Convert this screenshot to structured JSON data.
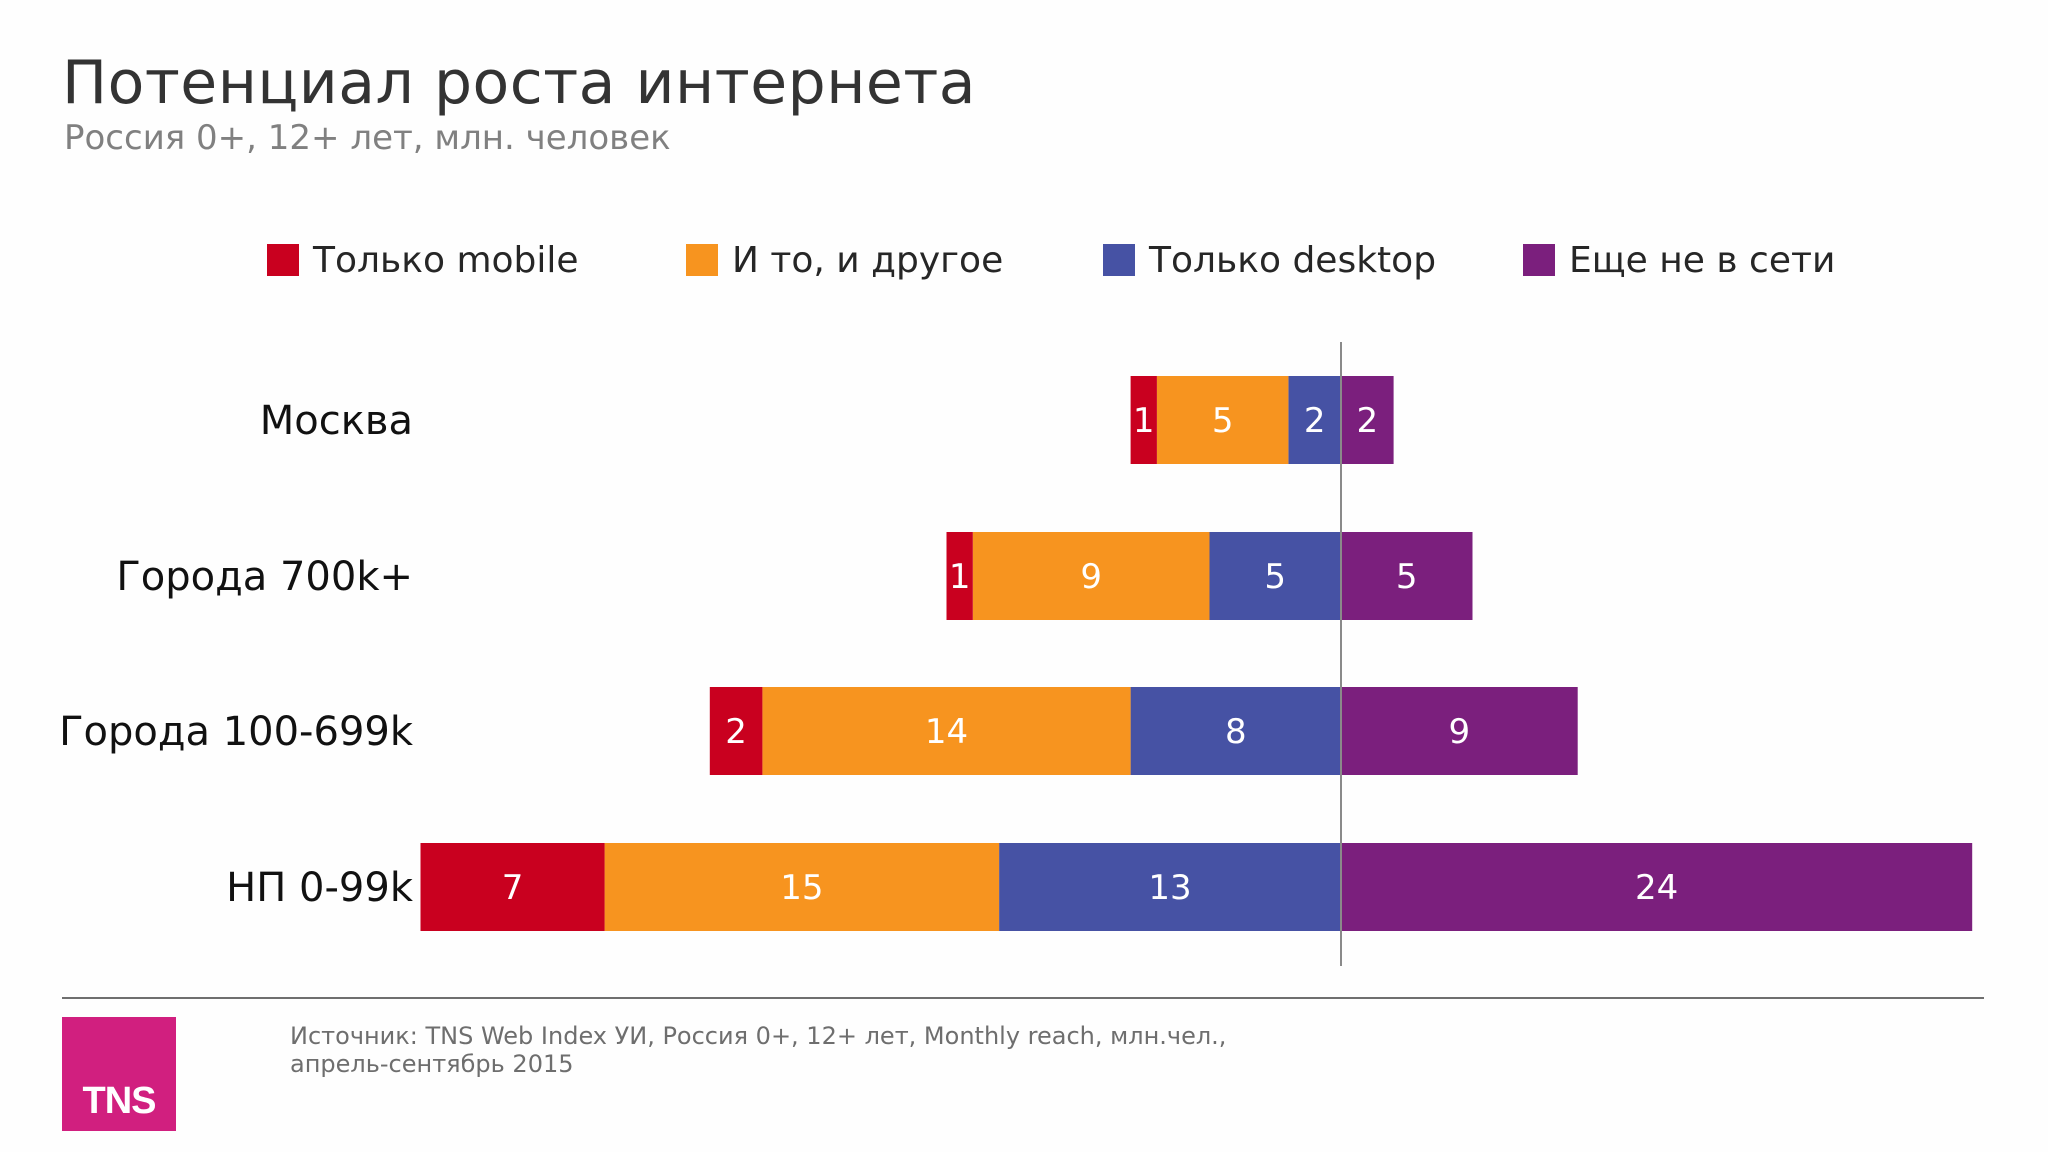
{
  "header": {
    "title": "Потенциал роста интернета",
    "subtitle": "Россия 0+, 12+ лет, млн. человек"
  },
  "legend": [
    {
      "label": "Только mobile",
      "color": "#c9001f"
    },
    {
      "label": "И то, и другое",
      "color": "#f7941f"
    },
    {
      "label": "Только desktop",
      "color": "#4652a4"
    },
    {
      "label": "Еще не в сети",
      "color": "#7b1f7d"
    }
  ],
  "chart_data": {
    "type": "bar",
    "orientation": "horizontal",
    "stacked": "diverging",
    "categories": [
      "Москва",
      "Города 700k+",
      "Города 100-699k",
      "НП 0-99k"
    ],
    "series": [
      {
        "name": "Только mobile",
        "side": "left",
        "color": "#c9001f",
        "values": [
          1,
          1,
          2,
          7
        ]
      },
      {
        "name": "И то, и другое",
        "side": "left",
        "color": "#f7941f",
        "values": [
          5,
          9,
          14,
          15
        ]
      },
      {
        "name": "Только desktop",
        "side": "left",
        "color": "#4652a4",
        "values": [
          2,
          5,
          8,
          13
        ]
      },
      {
        "name": "Еще не в сети",
        "side": "right",
        "color": "#7b1f7d",
        "values": [
          2,
          5,
          9,
          24
        ]
      }
    ],
    "title": "Потенциал роста интернета",
    "subtitle": "Россия 0+, 12+ лет, млн. человек",
    "xlabel": "",
    "ylabel": "",
    "grid": false,
    "legend_position": "top"
  },
  "footer": {
    "source_line1": "Источник: TNS Web Index УИ, Россия 0+, 12+ лет, Monthly reach, млн.чел.,",
    "source_line2": "апрель-сентябрь 2015",
    "logo_text": "TNS",
    "logo_color": "#d11f7f"
  }
}
